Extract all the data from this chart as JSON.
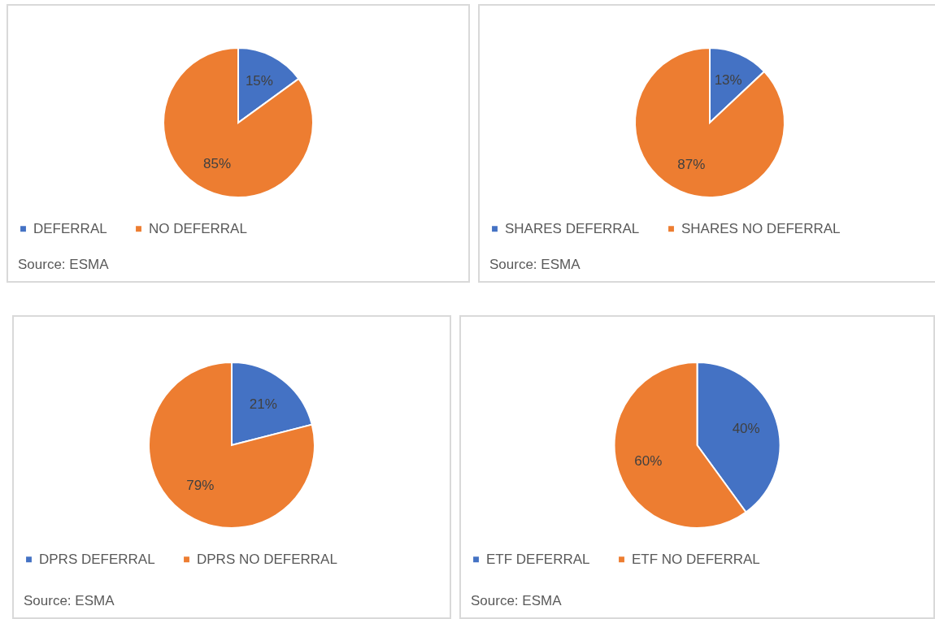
{
  "chart_data": [
    {
      "type": "pie",
      "categories": [
        "DEFERRAL",
        "NO DEFERRAL"
      ],
      "values": [
        15,
        85
      ],
      "colors": [
        "#4472c4",
        "#ed7d31"
      ],
      "value_labels": [
        "15%",
        "85%"
      ],
      "legend": "bottom",
      "annotations": [
        "Source: ESMA"
      ]
    },
    {
      "type": "pie",
      "categories": [
        "SHARES DEFERRAL",
        "SHARES NO DEFERRAL"
      ],
      "values": [
        13,
        87
      ],
      "colors": [
        "#4472c4",
        "#ed7d31"
      ],
      "value_labels": [
        "13%",
        "87%"
      ],
      "legend": "bottom",
      "annotations": [
        "Source: ESMA"
      ]
    },
    {
      "type": "pie",
      "categories": [
        "DPRS DEFERRAL",
        "DPRS NO DEFERRAL"
      ],
      "values": [
        21,
        79
      ],
      "colors": [
        "#4472c4",
        "#ed7d31"
      ],
      "value_labels": [
        "21%",
        "79%"
      ],
      "legend": "bottom",
      "annotations": [
        "Source: ESMA"
      ]
    },
    {
      "type": "pie",
      "categories": [
        "ETF DEFERRAL",
        "ETF NO DEFERRAL"
      ],
      "values": [
        40,
        60
      ],
      "colors": [
        "#4472c4",
        "#ed7d31"
      ],
      "value_labels": [
        "40%",
        "60%"
      ],
      "legend": "bottom",
      "annotations": [
        "Source: ESMA"
      ]
    }
  ]
}
